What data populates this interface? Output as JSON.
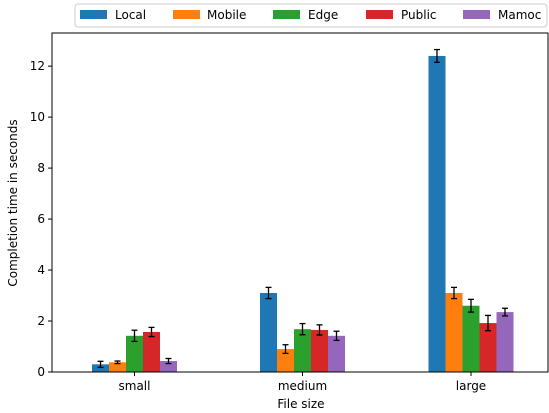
{
  "chart_data": {
    "type": "bar",
    "xlabel": "File size",
    "ylabel": "Completion time in seconds",
    "categories": [
      "small",
      "medium",
      "large"
    ],
    "ylim": [
      0,
      13.3
    ],
    "yticks": [
      0,
      2,
      4,
      6,
      8,
      10,
      12
    ],
    "grid": false,
    "legend_position": "top",
    "series": [
      {
        "name": "Local",
        "color": "#1f77b4",
        "values": [
          0.3,
          3.1,
          12.4
        ],
        "errors": [
          0.12,
          0.22,
          0.25
        ]
      },
      {
        "name": "Mobile",
        "color": "#ff7f0e",
        "values": [
          0.38,
          0.9,
          3.1
        ],
        "errors": [
          0.05,
          0.17,
          0.22
        ]
      },
      {
        "name": "Edge",
        "color": "#2ca02c",
        "values": [
          1.42,
          1.68,
          2.6
        ],
        "errors": [
          0.22,
          0.22,
          0.25
        ]
      },
      {
        "name": "Public",
        "color": "#d62728",
        "values": [
          1.57,
          1.65,
          1.92
        ],
        "errors": [
          0.18,
          0.2,
          0.3
        ]
      },
      {
        "name": "Mamoc",
        "color": "#9467bd",
        "values": [
          0.43,
          1.42,
          2.35
        ],
        "errors": [
          0.1,
          0.18,
          0.15
        ]
      }
    ]
  }
}
